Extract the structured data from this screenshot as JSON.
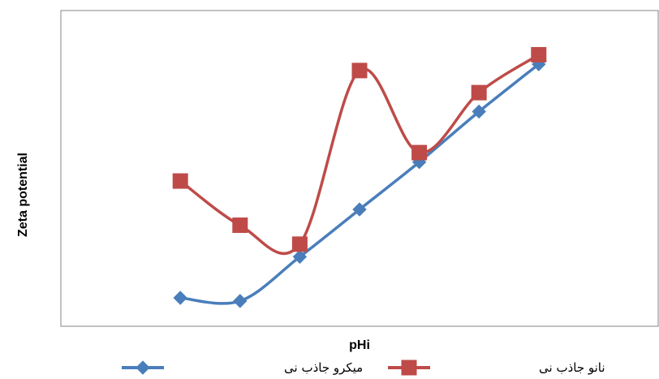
{
  "chart_data": {
    "type": "line",
    "xlabel": "pHi",
    "ylabel": "Zeta potential",
    "x": [
      1,
      2,
      3,
      4,
      5,
      6,
      7
    ],
    "xlim": [
      -1,
      9
    ],
    "ylim": [
      0,
      100
    ],
    "grid": false,
    "x_tick_labels": false,
    "y_tick_labels": false,
    "smooth": true,
    "legend_position": "bottom",
    "series": [
      {
        "name": "میکرو جاذب نی",
        "values": [
          9,
          8,
          22,
          37,
          52,
          68,
          83
        ],
        "color": "#4a7ebb",
        "marker": "diamond"
      },
      {
        "name": "نانو جاذب نی",
        "values": [
          46,
          32,
          26,
          81,
          55,
          74,
          86
        ],
        "color": "#be4b48",
        "marker": "square"
      }
    ]
  }
}
